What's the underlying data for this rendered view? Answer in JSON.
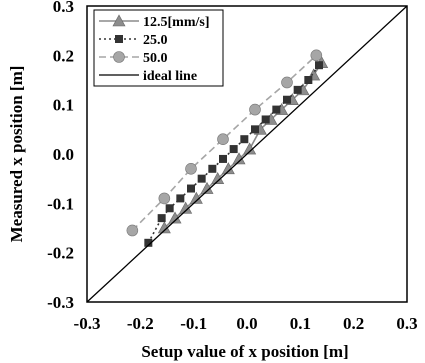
{
  "chart_data": {
    "type": "scatter",
    "xlabel": "Setup value of x position [m]",
    "ylabel": "Measured x position [m]",
    "xlim": [
      -0.3,
      0.3
    ],
    "ylim": [
      -0.3,
      0.3
    ],
    "x_ticks": [
      -0.3,
      -0.2,
      -0.1,
      0.0,
      0.1,
      0.2,
      0.3
    ],
    "y_ticks": [
      -0.3,
      -0.2,
      -0.1,
      0.0,
      0.1,
      0.2,
      0.3
    ],
    "x_tick_labels": [
      "-0.3",
      "-0.2",
      "-0.1",
      "0.0",
      "0.1",
      "0.2",
      "0.3"
    ],
    "y_tick_labels": [
      "-0.3",
      "-0.2",
      "-0.1",
      "0.0",
      "0.1",
      "0.2",
      "0.3"
    ],
    "legend_position": "top-left",
    "grid": false,
    "series": [
      {
        "name": "12.5[mm/s]",
        "marker": "triangle",
        "line_style": "solid",
        "color": "#8c8c8c",
        "x": [
          -0.155,
          -0.135,
          -0.115,
          -0.095,
          -0.075,
          -0.055,
          -0.035,
          -0.015,
          0.005,
          0.025,
          0.045,
          0.065,
          0.085,
          0.105,
          0.125,
          0.14
        ],
        "y": [
          -0.15,
          -0.13,
          -0.11,
          -0.09,
          -0.07,
          -0.05,
          -0.03,
          -0.01,
          0.01,
          0.05,
          0.07,
          0.09,
          0.11,
          0.13,
          0.16,
          0.185
        ]
      },
      {
        "name": "25.0",
        "marker": "square",
        "line_style": "dotted",
        "color": "#333333",
        "x": [
          -0.185,
          -0.16,
          -0.145,
          -0.125,
          -0.105,
          -0.085,
          -0.065,
          -0.045,
          -0.025,
          -0.005,
          0.015,
          0.035,
          0.055,
          0.075,
          0.095,
          0.115,
          0.135
        ],
        "y": [
          -0.18,
          -0.13,
          -0.11,
          -0.09,
          -0.07,
          -0.05,
          -0.03,
          -0.01,
          0.01,
          0.03,
          0.05,
          0.07,
          0.09,
          0.11,
          0.13,
          0.15,
          0.18
        ]
      },
      {
        "name": "50.0",
        "marker": "circle",
        "line_style": "dashed",
        "color": "#a6a6a6",
        "x": [
          -0.215,
          -0.155,
          -0.105,
          -0.045,
          0.015,
          0.075,
          0.13
        ],
        "y": [
          -0.155,
          -0.09,
          -0.03,
          0.03,
          0.09,
          0.145,
          0.2
        ]
      },
      {
        "name": "ideal line",
        "marker": "none",
        "line_style": "solid",
        "color": "#000000",
        "x": [
          -0.3,
          0.3
        ],
        "y": [
          -0.3,
          0.3
        ]
      }
    ]
  }
}
